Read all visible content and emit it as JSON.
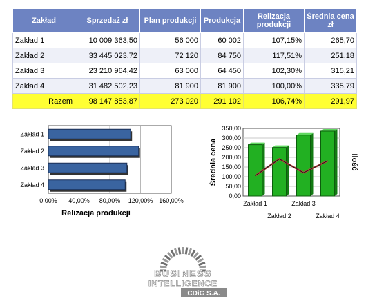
{
  "table": {
    "headers": [
      "Zakład",
      "Sprzedaż zł",
      "Plan produkcji",
      "Produkcja",
      "Relizacja produkcji",
      "Średnia cena zł"
    ],
    "rows": [
      [
        "Zakład 1",
        "10 009 363,50",
        "56 000",
        "60 002",
        "107,15%",
        "265,70"
      ],
      [
        "Zakład 2",
        "33 445 023,72",
        "72 120",
        "84 750",
        "117,51%",
        "251,18"
      ],
      [
        "Zakład 3",
        "23 210 964,42",
        "63 000",
        "64 450",
        "102,30%",
        "315,21"
      ],
      [
        "Zakład 4",
        "31 482 502,23",
        "81 900",
        "81 900",
        "100,00%",
        "335,79"
      ]
    ],
    "total": [
      "Razem",
      "98 147 853,87",
      "273 020",
      "291 102",
      "106,74%",
      "291,97"
    ]
  },
  "chart_data": [
    {
      "type": "bar",
      "orientation": "horizontal",
      "categories": [
        "Zakład 1",
        "Zakład 2",
        "Zakład 3",
        "Zakład 4"
      ],
      "values": [
        107.15,
        117.51,
        102.3,
        100.0
      ],
      "xlabel": "Relizacja produkcji",
      "xlim": [
        0,
        160
      ],
      "xticks": [
        "0,00%",
        "40,00%",
        "80,00%",
        "120,00%",
        "160,00%"
      ],
      "grid": true,
      "bar_color": "#3a64a0"
    },
    {
      "type": "bar+line",
      "categories": [
        "Zakład 1",
        "Zakład 2",
        "Zakład 3",
        "Zakład 4"
      ],
      "series": [
        {
          "name": "Średnia cena",
          "kind": "bar",
          "axis": "left",
          "values": [
            265.7,
            251.18,
            315.21,
            335.79
          ],
          "color": "#22b022"
        },
        {
          "name": "Ilość",
          "kind": "line",
          "axis": "right",
          "values": [
            60002,
            84750,
            64450,
            81900
          ],
          "color": "#222222"
        }
      ],
      "ylabel": "Średnia cena",
      "y2label": "Ilość",
      "ylim": [
        0,
        350
      ],
      "yticks": [
        "0,00",
        "50,00",
        "100,00",
        "150,00",
        "200,00",
        "250,00",
        "300,00",
        "350,00"
      ],
      "grid": true
    }
  ],
  "logo": {
    "line1": "BUSINESS",
    "line2": "INTELLIGENCE",
    "line3": "CDiG S.A."
  }
}
